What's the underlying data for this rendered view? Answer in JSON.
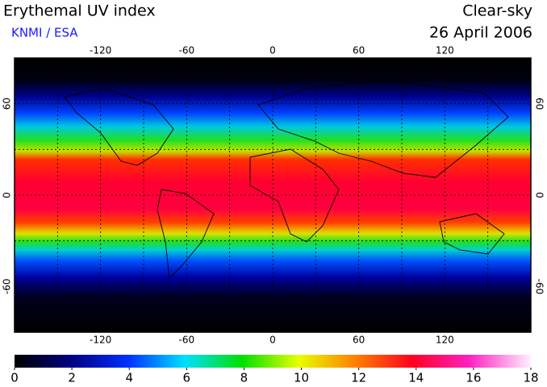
{
  "header": {
    "title": "Erythemal UV index",
    "source": "KNMI / ESA",
    "condition": "Clear-sky",
    "date": "26 April 2006"
  },
  "map": {
    "lonlim": [
      -180,
      180
    ],
    "latlim": [
      -90,
      90
    ],
    "lon_ticks": [
      -120,
      -60,
      0,
      60,
      120
    ],
    "lat_ticks": [
      -60,
      0,
      60
    ]
  },
  "colorbar": {
    "lim": [
      0,
      18
    ],
    "ticks": [
      0,
      2,
      4,
      6,
      8,
      10,
      12,
      14,
      16,
      18
    ]
  }
}
